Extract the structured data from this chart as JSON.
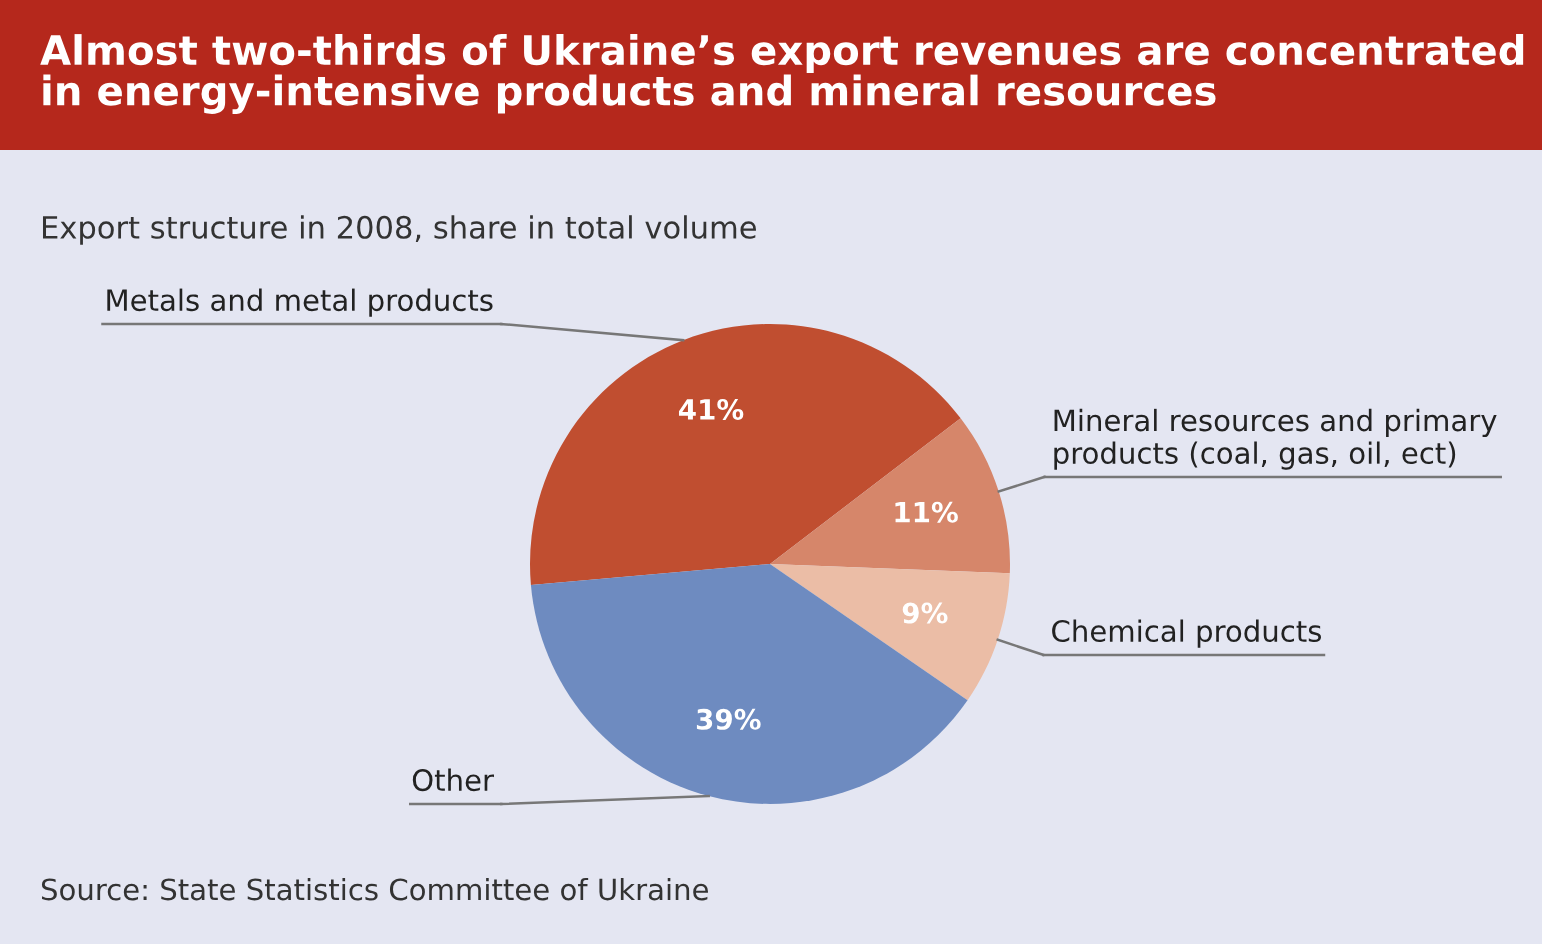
{
  "chart_data": {
    "type": "pie",
    "title": "Almost two-thirds of Ukraine’s export revenues are concentrated in energy-intensive products and mineral resources",
    "subtitle": "Export structure in 2008, share in total volume",
    "categories": [
      "Metals and metal products",
      "Mineral resources and primary\nproducts (coal, gas, oil, ect)",
      "Chemical products",
      "Other"
    ],
    "values": [
      41,
      11,
      9,
      39
    ],
    "value_labels": [
      "41%",
      "11%",
      "9%",
      "39%"
    ],
    "colors": [
      "#c04e30",
      "#d6866a",
      "#ebbda6",
      "#6e8bc0"
    ],
    "annotations": [
      "Source: State Statistics Committee of Ukraine"
    ]
  }
}
